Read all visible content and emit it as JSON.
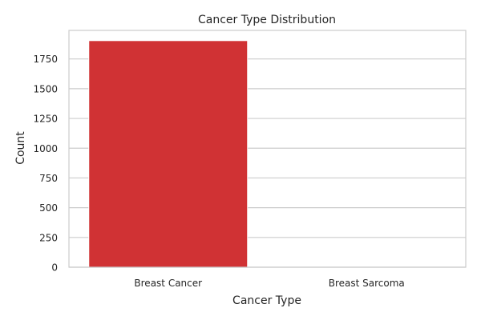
{
  "chart_data": {
    "type": "bar",
    "title": "Cancer Type Distribution",
    "xlabel": "Cancer Type",
    "ylabel": "Count",
    "categories": [
      "Breast Cancer",
      "Breast Sarcoma"
    ],
    "values": [
      1904,
      0
    ],
    "ylim": [
      0,
      1990
    ],
    "yticks": [
      0,
      250,
      500,
      750,
      1000,
      1250,
      1500,
      1750
    ],
    "ytick_labels": [
      "0",
      "250",
      "500",
      "750",
      "1000",
      "1250",
      "1500",
      "1750"
    ],
    "grid": "horizontal",
    "legend": "none",
    "colors": {
      "bar": "#d03234",
      "bar_edge": "#ffffff",
      "grid": "#cccccc",
      "axes_edge": "#cccccc"
    }
  }
}
